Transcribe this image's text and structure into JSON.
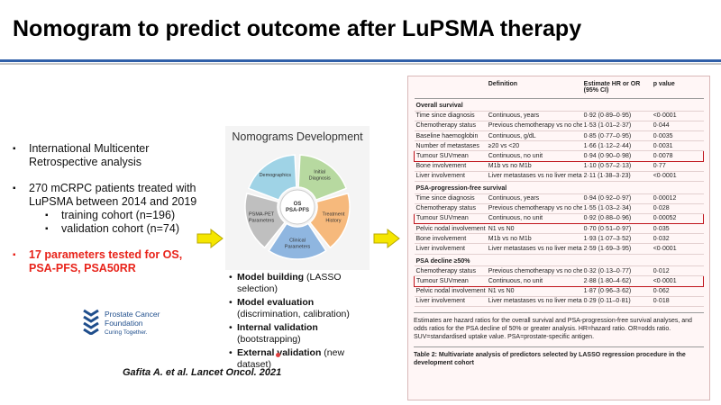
{
  "title": "Nomogram to predict outcome after LuPSMA therapy",
  "bullets": [
    {
      "text": "International Multicenter Retrospective analysis",
      "sub": []
    },
    {
      "text": "270 mCRPC patients treated with LuPSMA between 2014 and 2019",
      "sub": [
        "training cohort (n=196)",
        "validation cohort (n=74)"
      ]
    },
    {
      "text": "17 parameters tested for OS, PSA-PFS, PSA50RR",
      "sub": [],
      "color": "#e8231a",
      "bold": true
    }
  ],
  "logo": {
    "name": "Prostate Cancer Foundation",
    "tagline": "Curing Together."
  },
  "citation": "Gafita A. et al. Lancet Oncol. 2021",
  "nomogram": {
    "title": "Nomograms Development",
    "center": "OS PSA-PFS",
    "segments": [
      {
        "label": "Initial Diagnosis",
        "color": "#b7d9a0"
      },
      {
        "label": "Treatment History",
        "color": "#f6b97c"
      },
      {
        "label": "Clinical Parameters",
        "color": "#8fb6e0"
      },
      {
        "label": "PSMA-PET Parameters",
        "color": "#bfbfbf"
      },
      {
        "label": "Demographics",
        "color": "#9fd3e6"
      }
    ],
    "steps": [
      {
        "bold": "Model building",
        "text": "(LASSO selection)"
      },
      {
        "bold": "Model evaluation",
        "text": "(discrimination, calibration)"
      },
      {
        "bold": "Internal validation",
        "text": "(bootstrapping)"
      },
      {
        "bold": "External validation",
        "text": "(new dataset)"
      }
    ]
  },
  "table": {
    "header": [
      "Definition",
      "Estimate HR or OR (95% CI)",
      "p value"
    ],
    "sections": [
      {
        "name": "Overall survival",
        "rows": [
          {
            "cells": [
              "Time since diagnosis",
              "Continuous, years",
              "0·92 (0·89–0·95)",
              "<0·0001"
            ]
          },
          {
            "cells": [
              "Chemotherapy status",
              "Previous chemotherapy vs no chemotherapy",
              "1·53 (1·01–2·37)",
              "0·044"
            ]
          },
          {
            "cells": [
              "Baseline haemoglobin",
              "Continuous, g/dL",
              "0·85 (0·77–0·95)",
              "0·0035"
            ]
          },
          {
            "cells": [
              "Number of metastases",
              "≥20 vs <20",
              "1·66 (1·12–2·44)",
              "0·0031"
            ]
          },
          {
            "cells": [
              "Tumour SUVmean",
              "Continuous, no unit",
              "0·94 (0·90–0·98)",
              "0·0078"
            ],
            "highlight": true
          },
          {
            "cells": [
              "Bone involvement",
              "M1b vs no M1b",
              "1·10 (0·57–2·13)",
              "0·77"
            ]
          },
          {
            "cells": [
              "Liver involvement",
              "Liver metastases vs no liver metastases",
              "2·11 (1·38–3·23)",
              "<0·0001"
            ]
          }
        ]
      },
      {
        "name": "PSA-progression-free survival",
        "rows": [
          {
            "cells": [
              "Time since diagnosis",
              "Continuous, years",
              "0·94 (0·92–0·97)",
              "0·00012"
            ]
          },
          {
            "cells": [
              "Chemotherapy status",
              "Previous chemotherapy vs no chemotherapy",
              "1·55 (1·03–2·34)",
              "0·028"
            ]
          },
          {
            "cells": [
              "Tumour SUVmean",
              "Continuous, no unit",
              "0·92 (0·88–0·96)",
              "0·00052"
            ],
            "highlight": true
          },
          {
            "cells": [
              "Pelvic nodal involvement",
              "N1 vs N0",
              "0·70 (0·51–0·97)",
              "0·035"
            ]
          },
          {
            "cells": [
              "Bone involvement",
              "M1b vs no M1b",
              "1·93 (1·07–3·52)",
              "0·032"
            ]
          },
          {
            "cells": [
              "Liver involvement",
              "Liver metastases vs no liver metastases",
              "2·59 (1·69–3·95)",
              "<0·0001"
            ]
          }
        ]
      },
      {
        "name": "PSA decline ≥50%",
        "rows": [
          {
            "cells": [
              "Chemotherapy status",
              "Previous chemotherapy vs no chemotherapy",
              "0·32 (0·13–0·77)",
              "0·012"
            ]
          },
          {
            "cells": [
              "Tumour SUVmean",
              "Continuous, no unit",
              "2·88 (1·80–4·62)",
              "<0·0001"
            ],
            "highlight": true
          },
          {
            "cells": [
              "Pelvic nodal involvement",
              "N1 vs N0",
              "1·87 (0·96–3·62)",
              "0·062"
            ]
          },
          {
            "cells": [
              "Liver involvement",
              "Liver metastases vs no liver metastases",
              "0·29 (0·11–0·81)",
              "0·018"
            ]
          }
        ]
      }
    ],
    "footnote": "Estimates are hazard ratios for the overall survival and PSA-progression-free survival analyses, and odds ratios for the PSA decline of 50% or greater analysis. HR=hazard ratio. OR=odds ratio. SUV=standardised uptake value. PSA=prostate-specific antigen.",
    "caption": "Table 2: Multivariate analysis of predictors selected by LASSO regression procedure in the development cohort"
  }
}
